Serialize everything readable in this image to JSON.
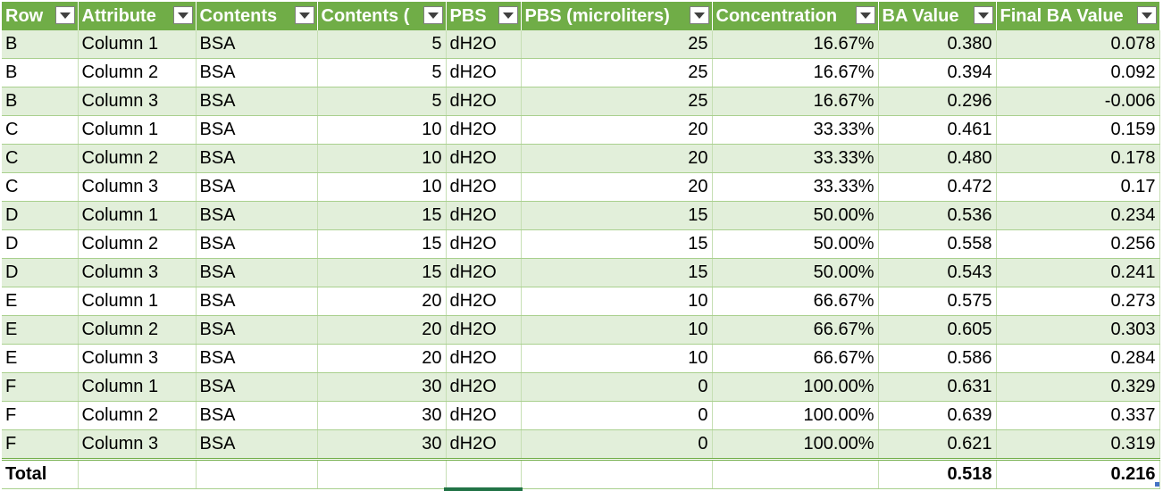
{
  "columns": [
    "Row",
    "Attribute",
    "Contents",
    "Contents (microliters)",
    "PBS",
    "PBS (microliters)",
    "Concentration",
    "BA Value",
    "Final BA Value"
  ],
  "columns_visible": [
    "Row",
    "Attribute",
    "Contents",
    "Contents (",
    "PBS",
    "PBS (microliters)",
    "Concentration",
    "BA Value",
    "Final BA Value"
  ],
  "rows": [
    [
      "B",
      "Column 1",
      "BSA",
      "5",
      "dH2O",
      "25",
      "16.67%",
      "0.380",
      "0.078"
    ],
    [
      "B",
      "Column 2",
      "BSA",
      "5",
      "dH2O",
      "25",
      "16.67%",
      "0.394",
      "0.092"
    ],
    [
      "B",
      "Column 3",
      "BSA",
      "5",
      "dH2O",
      "25",
      "16.67%",
      "0.296",
      "-0.006"
    ],
    [
      "C",
      "Column 1",
      "BSA",
      "10",
      "dH2O",
      "20",
      "33.33%",
      "0.461",
      "0.159"
    ],
    [
      "C",
      "Column 2",
      "BSA",
      "10",
      "dH2O",
      "20",
      "33.33%",
      "0.480",
      "0.178"
    ],
    [
      "C",
      "Column 3",
      "BSA",
      "10",
      "dH2O",
      "20",
      "33.33%",
      "0.472",
      "0.17"
    ],
    [
      "D",
      "Column 1",
      "BSA",
      "15",
      "dH2O",
      "15",
      "50.00%",
      "0.536",
      "0.234"
    ],
    [
      "D",
      "Column 2",
      "BSA",
      "15",
      "dH2O",
      "15",
      "50.00%",
      "0.558",
      "0.256"
    ],
    [
      "D",
      "Column 3",
      "BSA",
      "15",
      "dH2O",
      "15",
      "50.00%",
      "0.543",
      "0.241"
    ],
    [
      "E",
      "Column 1",
      "BSA",
      "20",
      "dH2O",
      "10",
      "66.67%",
      "0.575",
      "0.273"
    ],
    [
      "E",
      "Column 2",
      "BSA",
      "20",
      "dH2O",
      "10",
      "66.67%",
      "0.605",
      "0.303"
    ],
    [
      "E",
      "Column 3",
      "BSA",
      "20",
      "dH2O",
      "10",
      "66.67%",
      "0.586",
      "0.284"
    ],
    [
      "F",
      "Column 1",
      "BSA",
      "30",
      "dH2O",
      "0",
      "100.00%",
      "0.631",
      "0.329"
    ],
    [
      "F",
      "Column 2",
      "BSA",
      "30",
      "dH2O",
      "0",
      "100.00%",
      "0.639",
      "0.337"
    ],
    [
      "F",
      "Column 3",
      "BSA",
      "30",
      "dH2O",
      "0",
      "100.00%",
      "0.621",
      "0.319"
    ]
  ],
  "total": [
    "Total",
    "",
    "",
    "",
    "",
    "",
    "",
    "0.518",
    "0.216"
  ],
  "colors": {
    "header": "#70ad47",
    "band": "#e2efda",
    "border": "#a9d08e"
  }
}
